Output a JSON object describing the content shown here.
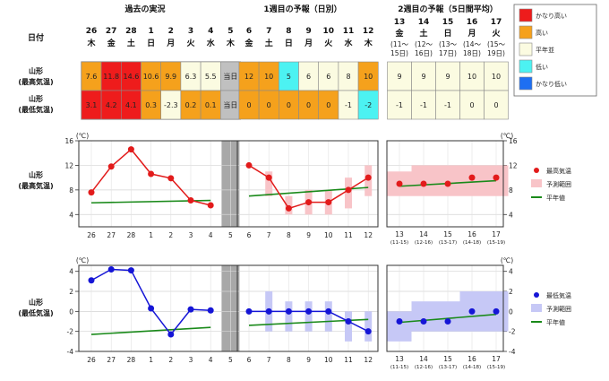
{
  "header": {
    "date_label": "日付",
    "section_past": "過去の実況",
    "section_week1": "1週目の予報（日別）",
    "section_week2": "2週目の予報（5日間平均）"
  },
  "days_past": [
    {
      "d": "26",
      "w": "木"
    },
    {
      "d": "27",
      "w": "金"
    },
    {
      "d": "28",
      "w": "土"
    },
    {
      "d": "1",
      "w": "日"
    },
    {
      "d": "2",
      "w": "月"
    },
    {
      "d": "3",
      "w": "火"
    },
    {
      "d": "4",
      "w": "水"
    },
    {
      "d": "5",
      "w": "木"
    }
  ],
  "days_week1": [
    {
      "d": "6",
      "w": "金"
    },
    {
      "d": "7",
      "w": "土"
    },
    {
      "d": "8",
      "w": "日"
    },
    {
      "d": "9",
      "w": "月"
    },
    {
      "d": "10",
      "w": "火"
    },
    {
      "d": "11",
      "w": "水"
    },
    {
      "d": "12",
      "w": "木"
    }
  ],
  "days_week2": [
    {
      "d": "13",
      "w": "金",
      "r": "(11～15日)"
    },
    {
      "d": "14",
      "w": "土",
      "r": "(12～16日)"
    },
    {
      "d": "15",
      "w": "日",
      "r": "(13～17日)"
    },
    {
      "d": "16",
      "w": "月",
      "r": "(14～18日)"
    },
    {
      "d": "17",
      "w": "火",
      "r": "(15～19日)"
    }
  ],
  "row_labels": {
    "max": [
      "山形",
      "(最高気温)"
    ],
    "min": [
      "山形",
      "(最低気温)"
    ]
  },
  "table": {
    "max_past": [
      {
        "t": "7.6",
        "c": "orange"
      },
      {
        "t": "11.8",
        "c": "red"
      },
      {
        "t": "14.6",
        "c": "red"
      },
      {
        "t": "10.6",
        "c": "orange"
      },
      {
        "t": "9.9",
        "c": "orange"
      },
      {
        "t": "6.3",
        "c": "cream"
      },
      {
        "t": "5.5",
        "c": "cream"
      },
      {
        "t": "当日",
        "c": "gray"
      }
    ],
    "max_week1": [
      {
        "t": "12",
        "c": "orange"
      },
      {
        "t": "10",
        "c": "orange"
      },
      {
        "t": "5",
        "c": "cyan"
      },
      {
        "t": "6",
        "c": "cream"
      },
      {
        "t": "6",
        "c": "cream"
      },
      {
        "t": "8",
        "c": "cream"
      },
      {
        "t": "10",
        "c": "orange"
      }
    ],
    "max_week2": [
      {
        "t": "9",
        "c": "cream"
      },
      {
        "t": "9",
        "c": "cream"
      },
      {
        "t": "9",
        "c": "cream"
      },
      {
        "t": "10",
        "c": "cream"
      },
      {
        "t": "10",
        "c": "cream"
      }
    ],
    "min_past": [
      {
        "t": "3.1",
        "c": "red"
      },
      {
        "t": "4.2",
        "c": "red"
      },
      {
        "t": "4.1",
        "c": "red"
      },
      {
        "t": "0.3",
        "c": "orange"
      },
      {
        "t": "-2.3",
        "c": "cream"
      },
      {
        "t": "0.2",
        "c": "orange"
      },
      {
        "t": "0.1",
        "c": "orange"
      },
      {
        "t": "当日",
        "c": "gray"
      }
    ],
    "min_week1": [
      {
        "t": "0",
        "c": "orange"
      },
      {
        "t": "0",
        "c": "orange"
      },
      {
        "t": "0",
        "c": "orange"
      },
      {
        "t": "0",
        "c": "orange"
      },
      {
        "t": "0",
        "c": "orange"
      },
      {
        "t": "-1",
        "c": "cream"
      },
      {
        "t": "-2",
        "c": "cyan"
      }
    ],
    "min_week2": [
      {
        "t": "-1",
        "c": "cream"
      },
      {
        "t": "-1",
        "c": "cream"
      },
      {
        "t": "-1",
        "c": "cream"
      },
      {
        "t": "0",
        "c": "cream"
      },
      {
        "t": "0",
        "c": "cream"
      }
    ]
  },
  "legend_table": [
    {
      "label": "かなり高い",
      "c": "red"
    },
    {
      "label": "高い",
      "c": "orange"
    },
    {
      "label": "平年並",
      "c": "cream"
    },
    {
      "label": "低い",
      "c": "cyan"
    },
    {
      "label": "かなり低い",
      "c": "blue"
    }
  ],
  "colors": {
    "red": "#ee1c1c",
    "orange": "#f5a11c",
    "cream": "#fbfbe1",
    "cyan": "#4cf2f2",
    "blue": "#1e6ff2",
    "gray": "#c0c0c0",
    "max_line": "#e21b1b",
    "max_range": "#f8c4c8",
    "min_line": "#1515d6",
    "min_range": "#c6c8f6",
    "normal": "#1a8a1a"
  },
  "chart_data": [
    {
      "type": "line",
      "title": "山形 (最高気温)",
      "unit_label": "(℃)",
      "ylim": [
        2,
        16
      ],
      "yticks": [
        "4",
        "8",
        "12",
        "16"
      ],
      "x_past": [
        "26",
        "27",
        "28",
        "1",
        "2",
        "3",
        "4"
      ],
      "x_today": "5",
      "x_week1": [
        "6",
        "7",
        "8",
        "9",
        "10",
        "11",
        "12"
      ],
      "x_week2": [
        "13",
        "14",
        "15",
        "16",
        "17"
      ],
      "x_week2_sub": [
        "(11-15)",
        "(12-16)",
        "(13-17)",
        "(14-18)",
        "(15-19)"
      ],
      "observed": [
        7.6,
        11.8,
        14.6,
        10.6,
        9.9,
        6.3,
        5.5
      ],
      "normal_past": [
        5.9,
        6.3
      ],
      "forecast": [
        12,
        10,
        5,
        6,
        6,
        8,
        10
      ],
      "forecast_range": [
        null,
        [
          7,
          11
        ],
        [
          4,
          7
        ],
        [
          4,
          8
        ],
        [
          4,
          8
        ],
        [
          5,
          10
        ],
        [
          7,
          12
        ]
      ],
      "normal_week1": [
        7.0,
        8.4
      ],
      "week2": [
        9,
        9,
        9,
        10,
        10
      ],
      "week2_range": [
        [
          7,
          11
        ],
        [
          7,
          12
        ],
        [
          7,
          12
        ],
        [
          7,
          12
        ],
        [
          7,
          12
        ]
      ],
      "normal_week2": [
        8.6,
        9.5
      ],
      "legend": [
        "最高気温",
        "予測範囲",
        "平年値"
      ]
    },
    {
      "type": "line",
      "title": "山形 (最低気温)",
      "unit_label": "(℃)",
      "ylim": [
        -4,
        4.6
      ],
      "yticks": [
        "-4",
        "-2",
        "0",
        "2",
        "4"
      ],
      "x_past": [
        "26",
        "27",
        "28",
        "1",
        "2",
        "3",
        "4"
      ],
      "x_today": "5",
      "x_week1": [
        "6",
        "7",
        "8",
        "9",
        "10",
        "11",
        "12"
      ],
      "x_week2": [
        "13",
        "14",
        "15",
        "16",
        "17"
      ],
      "x_week2_sub": [
        "(11-15)",
        "(12-16)",
        "(13-17)",
        "(14-18)",
        "(15-19)"
      ],
      "observed": [
        3.1,
        4.2,
        4.1,
        0.3,
        -2.3,
        0.2,
        0.1
      ],
      "normal_past": [
        -2.3,
        -1.6
      ],
      "forecast": [
        0,
        0,
        0,
        0,
        0,
        -1,
        -2
      ],
      "forecast_range": [
        null,
        [
          -2,
          2
        ],
        [
          -2,
          1
        ],
        [
          -2,
          1
        ],
        [
          -2,
          1
        ],
        [
          -3,
          0
        ],
        [
          -3,
          0
        ]
      ],
      "normal_week1": [
        -1.4,
        -0.8
      ],
      "week2": [
        -1,
        -1,
        -1,
        0,
        0
      ],
      "week2_range": [
        [
          -3,
          0
        ],
        [
          -2,
          1
        ],
        [
          -2,
          1
        ],
        [
          -2,
          2
        ],
        [
          -2,
          2
        ]
      ],
      "normal_week2": [
        -1.1,
        -0.3
      ],
      "legend": [
        "最低気温",
        "予測範囲",
        "平年値"
      ]
    }
  ]
}
